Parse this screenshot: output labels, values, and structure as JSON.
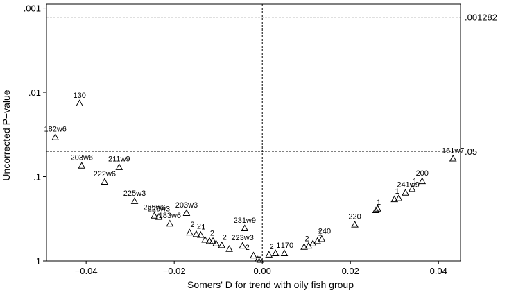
{
  "chart_data": {
    "type": "scatter",
    "title": "",
    "xlabel": "Somers' D for trend with oily fish group",
    "ylabel": "Uncorrected P−value",
    "xlim": [
      -0.049,
      0.045
    ],
    "ylim": [
      1,
      0.0009
    ],
    "y_scale": "log-reversed",
    "x_ticks": [
      {
        "value": -0.04,
        "label": "−0.04"
      },
      {
        "value": -0.02,
        "label": "−0.02"
      },
      {
        "value": 0.0,
        "label": "0.00"
      },
      {
        "value": 0.02,
        "label": "0.02"
      },
      {
        "value": 0.04,
        "label": "0.04"
      }
    ],
    "y_ticks": [
      {
        "value": 0.001,
        "label": ".001"
      },
      {
        "value": 0.01,
        "label": ".01"
      },
      {
        "value": 0.1,
        "label": ".1"
      },
      {
        "value": 1,
        "label": "1"
      }
    ],
    "reference_lines": [
      {
        "axis": "y",
        "value": 0.001282,
        "label": ".001282"
      },
      {
        "axis": "y",
        "value": 0.05,
        "label": ".05"
      },
      {
        "axis": "x",
        "value": 0.0
      }
    ],
    "marker": "triangle",
    "grid": false,
    "points": [
      {
        "label": "130",
        "x": -0.0415,
        "y": 0.0135
      },
      {
        "label": "182w6",
        "x": -0.047,
        "y": 0.034
      },
      {
        "label": "203w6",
        "x": -0.041,
        "y": 0.074
      },
      {
        "label": "211w9",
        "x": -0.0325,
        "y": 0.077
      },
      {
        "label": "222w6",
        "x": -0.0358,
        "y": 0.115
      },
      {
        "label": "225w3",
        "x": -0.029,
        "y": 0.195
      },
      {
        "label": "229w6",
        "x": -0.0245,
        "y": 0.29
      },
      {
        "label": "226w3",
        "x": -0.0235,
        "y": 0.3
      },
      {
        "label": "183w6",
        "x": -0.021,
        "y": 0.36
      },
      {
        "label": "203w3",
        "x": -0.0172,
        "y": 0.27
      },
      {
        "label": "",
        "x": -0.0165,
        "y": 0.46
      },
      {
        "label": "",
        "x": -0.015,
        "y": 0.48
      },
      {
        "label": "",
        "x": -0.014,
        "y": 0.49
      },
      {
        "label": "",
        "x": -0.013,
        "y": 0.56
      },
      {
        "label": "",
        "x": -0.012,
        "y": 0.58
      },
      {
        "label": "",
        "x": -0.0112,
        "y": 0.58
      },
      {
        "label": "",
        "x": -0.0105,
        "y": 0.62
      },
      {
        "label": "",
        "x": -0.0092,
        "y": 0.65
      },
      {
        "label": "",
        "x": -0.0075,
        "y": 0.72
      },
      {
        "label": "231w9",
        "x": -0.004,
        "y": 0.41
      },
      {
        "label": "223w3",
        "x": -0.0045,
        "y": 0.66
      },
      {
        "label": "",
        "x": -0.002,
        "y": 0.86
      },
      {
        "label": "",
        "x": -0.001,
        "y": 0.96
      },
      {
        "label": "",
        "x": -0.0005,
        "y": 0.97
      },
      {
        "label": "",
        "x": 0.0015,
        "y": 0.84
      },
      {
        "label": "",
        "x": 0.003,
        "y": 0.81
      },
      {
        "label": "",
        "x": 0.005,
        "y": 0.81
      },
      {
        "label": "",
        "x": 0.0095,
        "y": 0.68
      },
      {
        "label": "",
        "x": 0.0105,
        "y": 0.66
      },
      {
        "label": "",
        "x": 0.0115,
        "y": 0.62
      },
      {
        "label": "",
        "x": 0.0125,
        "y": 0.58
      },
      {
        "label": "",
        "x": 0.0135,
        "y": 0.55
      },
      {
        "label": "220",
        "x": 0.021,
        "y": 0.37
      },
      {
        "label": "",
        "x": 0.0258,
        "y": 0.25
      },
      {
        "label": "",
        "x": 0.0262,
        "y": 0.24
      },
      {
        "label": "",
        "x": 0.03,
        "y": 0.185
      },
      {
        "label": "",
        "x": 0.031,
        "y": 0.18
      },
      {
        "label": "",
        "x": 0.0325,
        "y": 0.155
      },
      {
        "label": "",
        "x": 0.034,
        "y": 0.14
      },
      {
        "label": "200",
        "x": 0.0363,
        "y": 0.113
      },
      {
        "label": "161w7",
        "x": 0.0433,
        "y": 0.061
      }
    ],
    "overlapping_labels": [
      {
        "text": "2",
        "x": -0.0165,
        "y": 0.46
      },
      {
        "text": "2",
        "x": -0.015,
        "y": 0.48
      },
      {
        "text": "1",
        "x": -0.014,
        "y": 0.49
      },
      {
        "text": "2",
        "x": -0.012,
        "y": 0.58
      },
      {
        "text": "2",
        "x": -0.0092,
        "y": 0.65
      },
      {
        "text": "2",
        "x": -0.004,
        "y": 0.86
      },
      {
        "text": "2",
        "x": 0.0015,
        "y": 0.84
      },
      {
        "text": "1",
        "x": 0.003,
        "y": 0.81
      },
      {
        "text": "170",
        "x": 0.005,
        "y": 0.81
      },
      {
        "text": "2",
        "x": 0.0095,
        "y": 0.68
      },
      {
        "text": "1",
        "x": 0.0125,
        "y": 0.58
      },
      {
        "text": "240",
        "x": 0.0135,
        "y": 0.55
      },
      {
        "text": "1",
        "x": 0.0258,
        "y": 0.25
      },
      {
        "text": "1",
        "x": 0.03,
        "y": 0.185
      },
      {
        "text": "241w9",
        "x": 0.0325,
        "y": 0.155
      },
      {
        "text": "1",
        "x": 0.034,
        "y": 0.14
      }
    ]
  }
}
